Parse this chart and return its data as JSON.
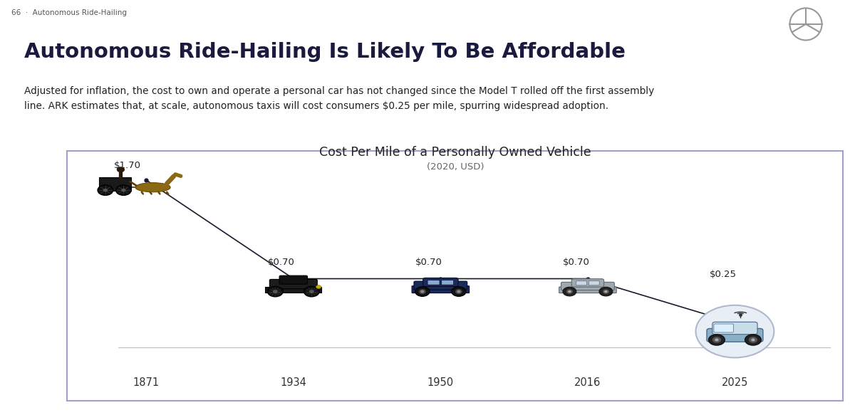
{
  "page_label": "66  ·  Autonomous Ride-Hailing",
  "title": "Autonomous Ride-Hailing Is Likely To Be Affordable",
  "subtitle": "Adjusted for inflation, the cost to own and operate a personal car has not changed since the Model T rolled off the first assembly\nline. ARK estimates that, at scale, autonomous taxis will cost consumers $0.25 per mile, spurring widespread adoption.",
  "chart_title": "Cost Per Mile of a Personally Owned Vehicle",
  "chart_subtitle": "(2020, USD)",
  "years": [
    "1871",
    "1934",
    "1950",
    "2016",
    "2025"
  ],
  "costs": [
    1.7,
    0.7,
    0.7,
    0.7,
    0.25
  ],
  "cost_labels": [
    "$1.70",
    "$0.70",
    "$0.70",
    "$0.70",
    "$0.25"
  ],
  "background_color": "#ffffff",
  "chart_border_color": "#a0a0cc",
  "chart_bg_color": "#ffffff",
  "line_color": "#1a1a2e",
  "title_color": "#1a1a3e",
  "subtitle_color": "#222222",
  "label_color": "#222222",
  "year_label_color": "#333333",
  "chart_title_color": "#222222",
  "page_label_color": "#555555"
}
